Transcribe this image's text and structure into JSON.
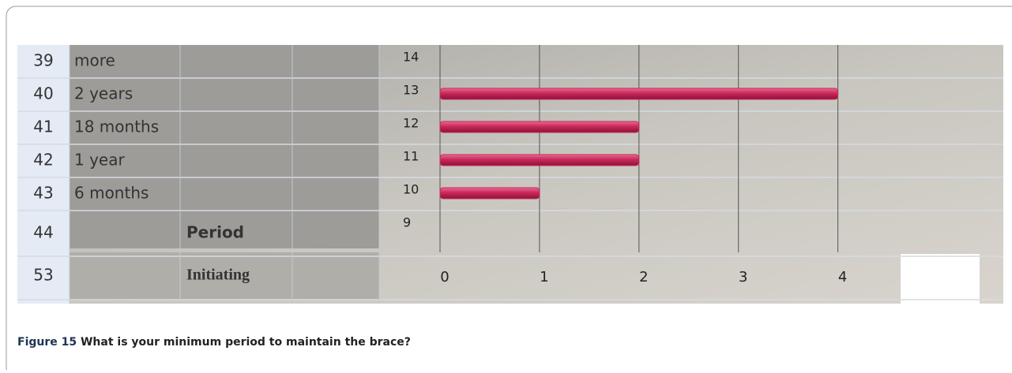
{
  "sheet": {
    "rows": [
      {
        "number": "39",
        "a": "more"
      },
      {
        "number": "40",
        "a": "2 years"
      },
      {
        "number": "41",
        "a": "18 months"
      },
      {
        "number": "42",
        "a": "1 year"
      },
      {
        "number": "43",
        "a": "6 months"
      },
      {
        "number": "44",
        "b": "Period"
      },
      {
        "number": "53",
        "b": "Initiating"
      }
    ]
  },
  "chart_data": {
    "type": "bar",
    "orientation": "horizontal",
    "categories": [
      "14",
      "13",
      "12",
      "11",
      "10",
      "9"
    ],
    "values": [
      null,
      4,
      2,
      2,
      1,
      null
    ],
    "color": "#c8285a",
    "xlim": [
      0,
      5.25
    ],
    "xticks": [
      0,
      1,
      2,
      3,
      4
    ],
    "grid": true
  },
  "caption": {
    "label": "Figure 15",
    "text": "What is your minimum period to maintain the brace?"
  }
}
